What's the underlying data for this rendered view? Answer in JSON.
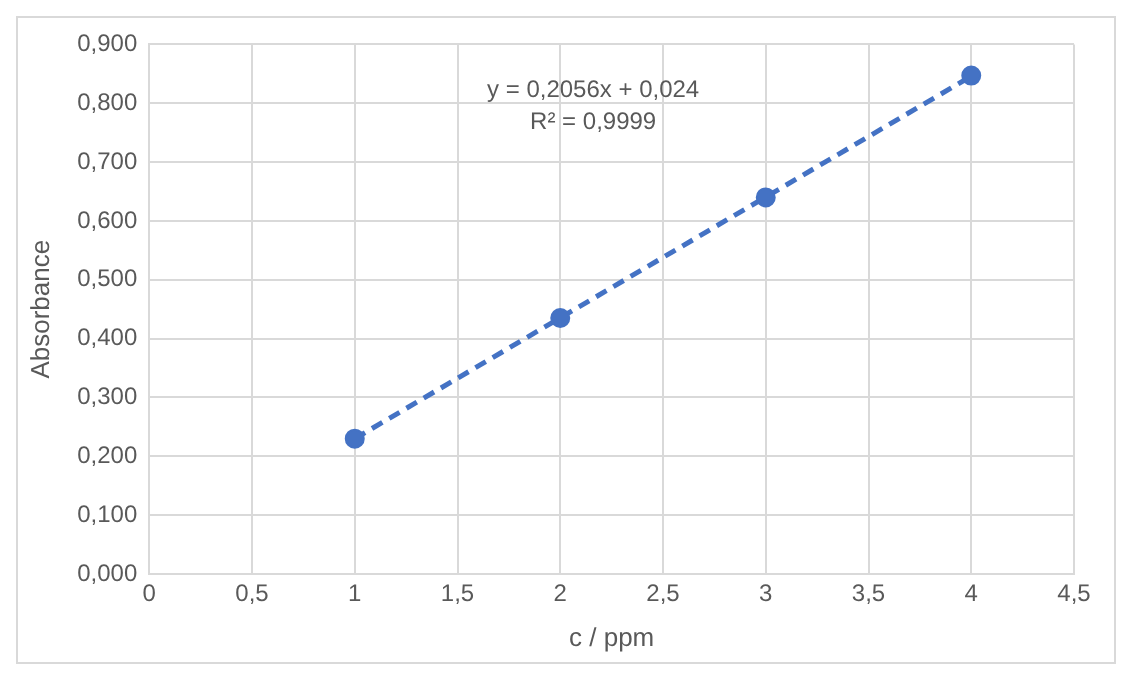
{
  "chart_data": {
    "type": "scatter",
    "xlabel": "c / ppm",
    "ylabel": "Absorbance",
    "xlim": [
      0,
      4.5
    ],
    "xticks": [
      0,
      {
        "value": 0.5,
        "label": "0,5"
      },
      1,
      {
        "value": 1.5,
        "label": "1,5"
      },
      2,
      {
        "value": 2.5,
        "label": "2,5"
      },
      3,
      {
        "value": 3.5,
        "label": "3,5"
      },
      4,
      {
        "value": 4.5,
        "label": "4,5"
      }
    ],
    "ylim": [
      0,
      0.9
    ],
    "yticks": [
      {
        "value": 0,
        "label": "0,000"
      },
      {
        "value": 0.1,
        "label": "0,100"
      },
      {
        "value": 0.2,
        "label": "0,200"
      },
      {
        "value": 0.3,
        "label": "0,300"
      },
      {
        "value": 0.4,
        "label": "0,400"
      },
      {
        "value": 0.5,
        "label": "0,500"
      },
      {
        "value": 0.6,
        "label": "0,600"
      },
      {
        "value": 0.7,
        "label": "0,700"
      },
      {
        "value": 0.8,
        "label": "0,800"
      },
      {
        "value": 0.9,
        "label": "0,900"
      }
    ],
    "grid": true,
    "legend": false,
    "annotations": [
      "y = 0,2056x + 0,024",
      "R² = 0,9999"
    ],
    "series": [
      {
        "color": "#4472c4",
        "x": [
          1,
          2,
          3,
          4
        ],
        "values": [
          0.23,
          0.435,
          0.64,
          0.847
        ],
        "marker": "circle"
      },
      {
        "type": "line",
        "color": "#4472c4",
        "x": [
          1,
          4
        ],
        "values": [
          0.23,
          0.846
        ],
        "line_style": "dashed",
        "marker": "none"
      }
    ]
  }
}
